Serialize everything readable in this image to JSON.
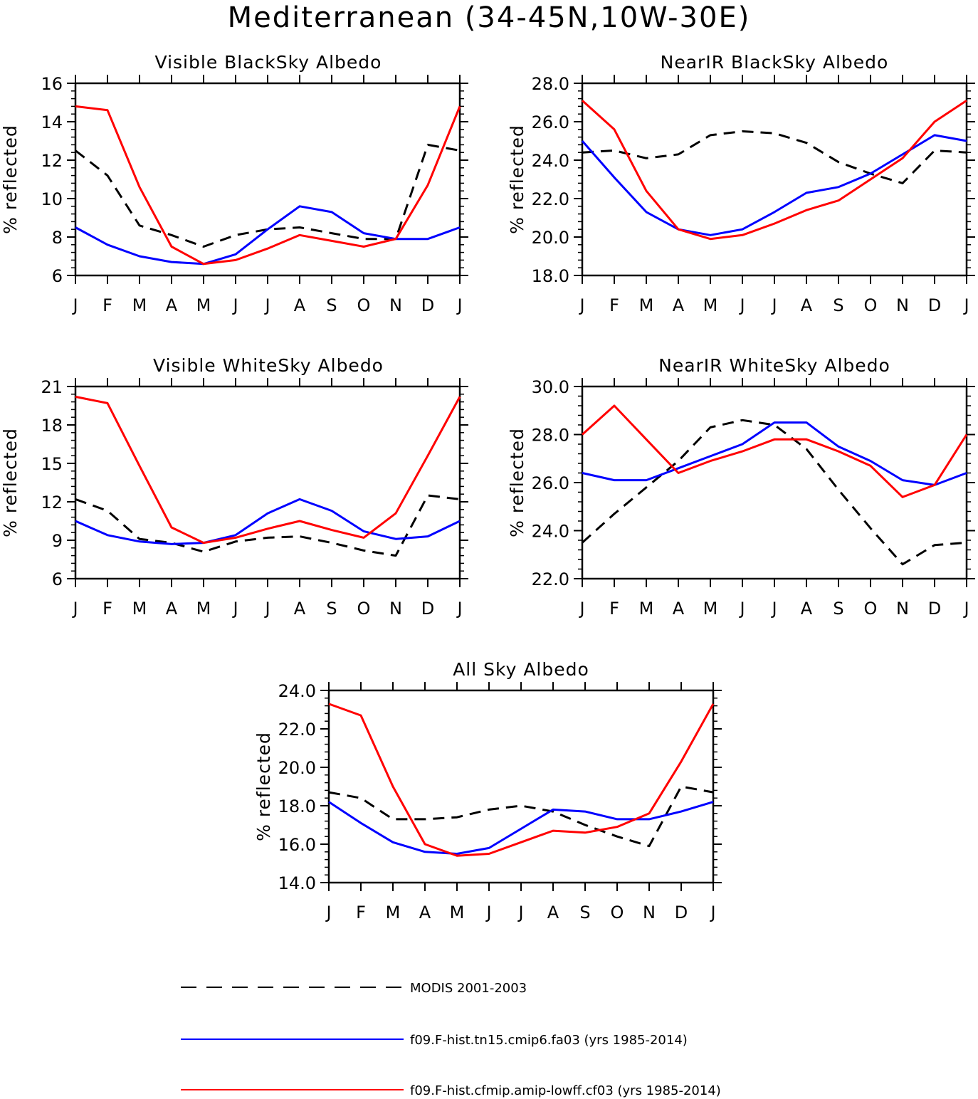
{
  "title": "Mediterranean (34-45N,10W-30E)",
  "months": [
    "J",
    "F",
    "M",
    "A",
    "M",
    "J",
    "J",
    "A",
    "S",
    "O",
    "N",
    "D",
    "J"
  ],
  "colors": {
    "modis": "#000000",
    "fa03": "#0000ff",
    "cf03": "#ff0000"
  },
  "legend": [
    {
      "key": "modis",
      "label": "MODIS 2001-2003",
      "style": "dashed"
    },
    {
      "key": "fa03",
      "label": "f09.F-hist.tn15.cmip6.fa03 (yrs 1985-2014)",
      "style": "solid"
    },
    {
      "key": "cf03",
      "label": "f09.F-hist.cfmip.amip-lowff.cf03 (yrs 1985-2014)",
      "style": "solid"
    }
  ],
  "chart_data": [
    {
      "type": "line",
      "title": "Visible BlackSky Albedo",
      "ylabel": "% reflected",
      "ylim": [
        6,
        16
      ],
      "yticks": [
        "6",
        "8",
        "10",
        "12",
        "14",
        "16"
      ],
      "categories": [
        "J",
        "F",
        "M",
        "A",
        "M",
        "J",
        "J",
        "A",
        "S",
        "O",
        "N",
        "D",
        "J"
      ],
      "series": [
        {
          "name": "MODIS 2001-2003",
          "key": "modis",
          "values": [
            12.5,
            11.2,
            8.6,
            8.1,
            7.5,
            8.1,
            8.4,
            8.5,
            8.2,
            7.9,
            7.9,
            12.8,
            12.5
          ]
        },
        {
          "name": "f09.F-hist.tn15.cmip6.fa03 (yrs 1985-2014)",
          "key": "fa03",
          "values": [
            8.5,
            7.6,
            7.0,
            6.7,
            6.6,
            7.1,
            8.4,
            9.6,
            9.3,
            8.2,
            7.9,
            7.9,
            8.5
          ]
        },
        {
          "name": "f09.F-hist.cfmip.amip-lowff.cf03 (yrs 1985-2014)",
          "key": "cf03",
          "values": [
            14.8,
            14.6,
            10.6,
            7.5,
            6.6,
            6.8,
            7.4,
            8.1,
            7.8,
            7.5,
            7.9,
            10.7,
            14.8
          ]
        }
      ]
    },
    {
      "type": "line",
      "title": "NearIR BlackSky Albedo",
      "ylabel": "% reflected",
      "ylim": [
        18,
        28
      ],
      "yticks": [
        "18.0",
        "20.0",
        "22.0",
        "24.0",
        "26.0",
        "28.0"
      ],
      "categories": [
        "J",
        "F",
        "M",
        "A",
        "M",
        "J",
        "J",
        "A",
        "S",
        "O",
        "N",
        "D",
        "J"
      ],
      "series": [
        {
          "name": "MODIS 2001-2003",
          "key": "modis",
          "values": [
            24.4,
            24.5,
            24.1,
            24.3,
            25.3,
            25.5,
            25.4,
            24.9,
            23.9,
            23.3,
            22.8,
            24.5,
            24.4
          ]
        },
        {
          "name": "f09.F-hist.tn15.cmip6.fa03 (yrs 1985-2014)",
          "key": "fa03",
          "values": [
            25.0,
            23.1,
            21.3,
            20.4,
            20.1,
            20.4,
            21.3,
            22.3,
            22.6,
            23.3,
            24.3,
            25.3,
            25.0
          ]
        },
        {
          "name": "f09.F-hist.cfmip.amip-lowff.cf03 (yrs 1985-2014)",
          "key": "cf03",
          "values": [
            27.1,
            25.6,
            22.4,
            20.4,
            19.9,
            20.1,
            20.7,
            21.4,
            21.9,
            23.0,
            24.1,
            26.0,
            27.1
          ]
        }
      ]
    },
    {
      "type": "line",
      "title": "Visible WhiteSky Albedo",
      "ylabel": "% reflected",
      "ylim": [
        6,
        21
      ],
      "yticks": [
        "6",
        "9",
        "12",
        "15",
        "18",
        "21"
      ],
      "categories": [
        "J",
        "F",
        "M",
        "A",
        "M",
        "J",
        "J",
        "A",
        "S",
        "O",
        "N",
        "D",
        "J"
      ],
      "series": [
        {
          "name": "MODIS 2001-2003",
          "key": "modis",
          "values": [
            12.2,
            11.3,
            9.1,
            8.8,
            8.1,
            8.9,
            9.2,
            9.3,
            8.8,
            8.2,
            7.8,
            12.5,
            12.2
          ]
        },
        {
          "name": "f09.F-hist.tn15.cmip6.fa03 (yrs 1985-2014)",
          "key": "fa03",
          "values": [
            10.5,
            9.4,
            8.9,
            8.7,
            8.8,
            9.4,
            11.1,
            12.2,
            11.3,
            9.7,
            9.1,
            9.3,
            10.5
          ]
        },
        {
          "name": "f09.F-hist.cfmip.amip-lowff.cf03 (yrs 1985-2014)",
          "key": "cf03",
          "values": [
            20.2,
            19.7,
            14.8,
            10.0,
            8.8,
            9.2,
            9.9,
            10.5,
            9.8,
            9.2,
            11.1,
            15.6,
            20.2
          ]
        }
      ]
    },
    {
      "type": "line",
      "title": "NearIR WhiteSky Albedo",
      "ylabel": "% reflected",
      "ylim": [
        22,
        30
      ],
      "yticks": [
        "22.0",
        "24.0",
        "26.0",
        "28.0",
        "30.0"
      ],
      "categories": [
        "J",
        "F",
        "M",
        "A",
        "M",
        "J",
        "J",
        "A",
        "S",
        "O",
        "N",
        "D",
        "J"
      ],
      "series": [
        {
          "name": "MODIS 2001-2003",
          "key": "modis",
          "values": [
            23.5,
            24.7,
            25.8,
            26.9,
            28.3,
            28.6,
            28.4,
            27.4,
            25.7,
            24.1,
            22.6,
            23.4,
            23.5
          ]
        },
        {
          "name": "f09.F-hist.tn15.cmip6.fa03 (yrs 1985-2014)",
          "key": "fa03",
          "values": [
            26.4,
            26.1,
            26.1,
            26.6,
            27.1,
            27.6,
            28.5,
            28.5,
            27.5,
            26.9,
            26.1,
            25.9,
            26.4
          ]
        },
        {
          "name": "f09.F-hist.cfmip.amip-lowff.cf03 (yrs 1985-2014)",
          "key": "cf03",
          "values": [
            28.0,
            29.2,
            27.8,
            26.4,
            26.9,
            27.3,
            27.8,
            27.8,
            27.3,
            26.7,
            25.4,
            25.9,
            28.0
          ]
        }
      ]
    },
    {
      "type": "line",
      "title": "All Sky Albedo",
      "ylabel": "% reflected",
      "ylim": [
        14,
        24
      ],
      "yticks": [
        "14.0",
        "16.0",
        "18.0",
        "20.0",
        "22.0",
        "24.0"
      ],
      "categories": [
        "J",
        "F",
        "M",
        "A",
        "M",
        "J",
        "J",
        "A",
        "S",
        "O",
        "N",
        "D",
        "J"
      ],
      "series": [
        {
          "name": "MODIS 2001-2003",
          "key": "modis",
          "values": [
            18.7,
            18.4,
            17.3,
            17.3,
            17.4,
            17.8,
            18.0,
            17.7,
            17.0,
            16.4,
            15.9,
            19.0,
            18.7
          ]
        },
        {
          "name": "f09.F-hist.tn15.cmip6.fa03 (yrs 1985-2014)",
          "key": "fa03",
          "values": [
            18.2,
            17.1,
            16.1,
            15.6,
            15.5,
            15.8,
            16.8,
            17.8,
            17.7,
            17.3,
            17.3,
            17.7,
            18.2
          ]
        },
        {
          "name": "f09.F-hist.cfmip.amip-lowff.cf03 (yrs 1985-2014)",
          "key": "cf03",
          "values": [
            23.3,
            22.7,
            19.0,
            16.0,
            15.4,
            15.5,
            16.1,
            16.7,
            16.6,
            16.9,
            17.6,
            20.3,
            23.3
          ]
        }
      ]
    }
  ]
}
